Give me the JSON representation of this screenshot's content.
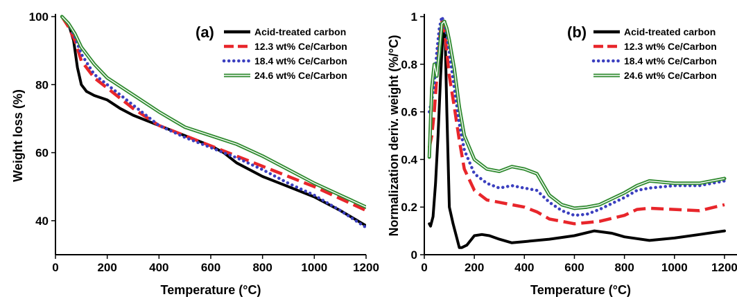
{
  "colors": {
    "acid": "#000000",
    "ce123": "#e8262b",
    "ce184": "#3b3fbf",
    "ce246": "#2f8a2f"
  },
  "chart_data": [
    {
      "type": "line",
      "panel_label": "(a)",
      "xlabel": "Temperature (°C)",
      "ylabel": "Weight loss (%)",
      "xlim": [
        0,
        1200
      ],
      "ylim": [
        30,
        100
      ],
      "xticks": [
        "0",
        "200",
        "400",
        "600",
        "800",
        "1000",
        "1200"
      ],
      "yticks": [
        "40",
        "60",
        "80",
        "100"
      ],
      "legend_position": "top-right",
      "series": [
        {
          "name": "Acid-treated carbon",
          "style": "solid",
          "color_key": "acid",
          "x": [
            25,
            50,
            70,
            85,
            100,
            120,
            150,
            200,
            250,
            300,
            400,
            500,
            600,
            650,
            700,
            800,
            900,
            1000,
            1100,
            1200
          ],
          "y": [
            100,
            98,
            93,
            85,
            80,
            78,
            76.8,
            75.5,
            73,
            71,
            68,
            65,
            62,
            60,
            57,
            53,
            50,
            47,
            43,
            38.5
          ]
        },
        {
          "name": "12.3 wt% Ce/Carbon",
          "style": "dashed",
          "color_key": "ce123",
          "x": [
            25,
            50,
            75,
            100,
            150,
            200,
            300,
            400,
            500,
            600,
            700,
            800,
            900,
            1000,
            1100,
            1200
          ],
          "y": [
            100,
            97,
            93,
            87,
            82,
            79,
            73,
            68,
            65,
            62,
            59,
            56,
            53,
            50,
            46.5,
            43
          ]
        },
        {
          "name": "18.4 wt% Ce/Carbon",
          "style": "dotted",
          "color_key": "ce184",
          "x": [
            25,
            50,
            75,
            100,
            150,
            200,
            300,
            400,
            500,
            600,
            700,
            800,
            900,
            1000,
            1100,
            1200
          ],
          "y": [
            100,
            98,
            94,
            89,
            83,
            80,
            74,
            68,
            64.5,
            61.5,
            58.5,
            55,
            51,
            47.5,
            43,
            38
          ]
        },
        {
          "name": "24.6 wt% Ce/Carbon",
          "style": "double",
          "color_key": "ce246",
          "x": [
            25,
            50,
            75,
            100,
            150,
            200,
            300,
            400,
            500,
            600,
            700,
            800,
            900,
            1000,
            1100,
            1200
          ],
          "y": [
            100,
            98,
            95,
            91,
            86,
            82,
            77,
            72,
            67.5,
            65,
            62.5,
            59,
            55,
            51,
            47.5,
            44
          ]
        }
      ]
    },
    {
      "type": "line",
      "panel_label": "(b)",
      "xlabel": "Temperature (°C)",
      "ylabel": "Normalization deriv. weight (%/°C)",
      "xlim": [
        0,
        1250
      ],
      "ylim": [
        0,
        1
      ],
      "xticks": [
        "0",
        "200",
        "400",
        "600",
        "800",
        "1000",
        "1200"
      ],
      "yticks": [
        "0",
        "0.2",
        "0.4",
        "0.6",
        "0.8",
        "1"
      ],
      "legend_position": "top-right",
      "series": [
        {
          "name": "Acid-treated carbon",
          "style": "solid",
          "color_key": "acid",
          "x": [
            20,
            25,
            35,
            45,
            55,
            65,
            75,
            82,
            90,
            100,
            115,
            130,
            140,
            150,
            170,
            200,
            230,
            260,
            300,
            350,
            400,
            500,
            600,
            680,
            750,
            800,
            900,
            1000,
            1100,
            1200
          ],
          "y": [
            0.13,
            0.12,
            0.16,
            0.3,
            0.5,
            0.75,
            0.95,
            0.98,
            0.6,
            0.2,
            0.13,
            0.07,
            0.03,
            0.03,
            0.04,
            0.08,
            0.085,
            0.08,
            0.065,
            0.05,
            0.055,
            0.065,
            0.08,
            0.1,
            0.09,
            0.075,
            0.06,
            0.07,
            0.085,
            0.1
          ]
        },
        {
          "name": "12.3 wt% Ce/Carbon",
          "style": "dashed",
          "color_key": "ce123",
          "x": [
            20,
            30,
            40,
            50,
            60,
            70,
            80,
            90,
            100,
            120,
            140,
            160,
            200,
            250,
            300,
            350,
            400,
            450,
            500,
            550,
            600,
            650,
            700,
            800,
            850,
            900,
            1000,
            1100,
            1200
          ],
          "y": [
            0.45,
            0.5,
            0.6,
            0.75,
            0.9,
            0.98,
            0.95,
            0.85,
            0.75,
            0.62,
            0.48,
            0.36,
            0.27,
            0.23,
            0.22,
            0.21,
            0.2,
            0.18,
            0.15,
            0.14,
            0.13,
            0.135,
            0.14,
            0.165,
            0.19,
            0.195,
            0.19,
            0.185,
            0.21
          ]
        },
        {
          "name": "18.4 wt% Ce/Carbon",
          "style": "dotted",
          "color_key": "ce184",
          "x": [
            20,
            30,
            40,
            50,
            60,
            70,
            80,
            90,
            100,
            120,
            140,
            160,
            200,
            250,
            300,
            350,
            400,
            450,
            500,
            550,
            600,
            650,
            700,
            800,
            850,
            900,
            1000,
            1100,
            1200
          ],
          "y": [
            0.6,
            0.65,
            0.72,
            0.85,
            0.95,
            1.0,
            0.97,
            0.92,
            0.85,
            0.7,
            0.55,
            0.44,
            0.34,
            0.3,
            0.28,
            0.29,
            0.28,
            0.27,
            0.22,
            0.185,
            0.165,
            0.17,
            0.19,
            0.24,
            0.27,
            0.28,
            0.29,
            0.29,
            0.31
          ]
        },
        {
          "name": "24.6 wt% Ce/Carbon",
          "style": "double",
          "color_key": "ce246",
          "x": [
            20,
            30,
            40,
            50,
            60,
            70,
            80,
            90,
            100,
            120,
            140,
            160,
            200,
            250,
            300,
            350,
            400,
            450,
            500,
            550,
            600,
            650,
            700,
            800,
            850,
            900,
            1000,
            1100,
            1200
          ],
          "y": [
            0.41,
            0.7,
            0.8,
            0.75,
            0.85,
            0.97,
            0.98,
            0.95,
            0.9,
            0.78,
            0.62,
            0.5,
            0.4,
            0.36,
            0.35,
            0.37,
            0.36,
            0.34,
            0.25,
            0.21,
            0.195,
            0.2,
            0.21,
            0.26,
            0.29,
            0.31,
            0.3,
            0.3,
            0.32
          ]
        }
      ]
    }
  ]
}
